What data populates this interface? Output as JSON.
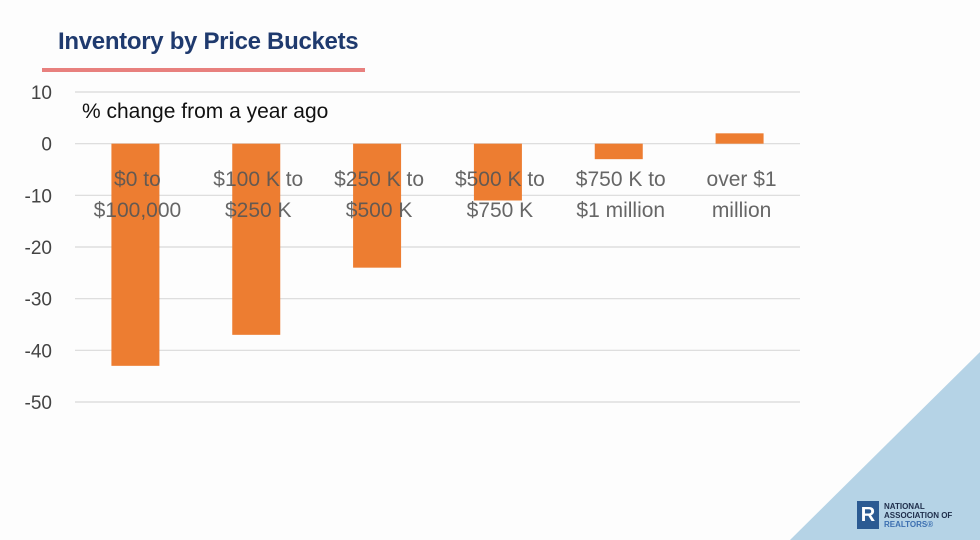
{
  "slide": {
    "title": "Inventory by Price Buckets",
    "accent_color": "#e8807e",
    "title_color": "#1f3a6e",
    "logo": {
      "line1": "NATIONAL",
      "line2": "ASSOCIATION OF",
      "line3": "REALTORS®",
      "mark": "R"
    }
  },
  "chart_data": {
    "type": "bar",
    "title": "% change from a year ago",
    "xlabel": "",
    "ylabel": "",
    "categories": [
      [
        "$0 to",
        "$100,000"
      ],
      [
        "$100 K to",
        "$250 K"
      ],
      [
        "$250 K to",
        "$500 K"
      ],
      [
        "$500 K to",
        "$750 K"
      ],
      [
        "$750 K to",
        "$1 million"
      ],
      [
        "over $1",
        "million"
      ]
    ],
    "values": [
      -43,
      -37,
      -24,
      -11,
      -3,
      2
    ],
    "ylim": [
      -50,
      10
    ],
    "yticks": [
      10,
      0,
      -10,
      -20,
      -30,
      -40,
      -50
    ],
    "grid": true,
    "legend": "none",
    "bar_color": "#ed7d31"
  }
}
